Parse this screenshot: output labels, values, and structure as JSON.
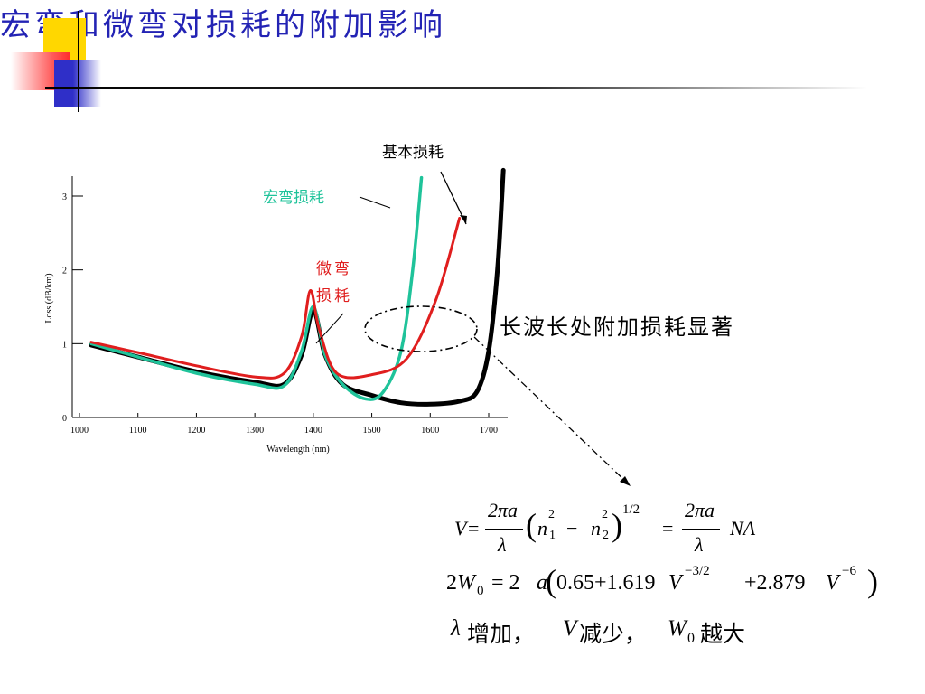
{
  "slide": {
    "title": "宏弯和微弯对损耗的附加影响",
    "accent_colors": {
      "title": "#2323b4",
      "yellow": "#ffd700",
      "red": "#ff3b3b",
      "blue": "#2f2fc8"
    }
  },
  "chart_data": {
    "type": "line",
    "xlabel": "Wavelength (nm)",
    "ylabel": "Loss (dB/km)",
    "xlim": [
      1000,
      1750
    ],
    "ylim": [
      0,
      3.4
    ],
    "x_ticks": [
      "1000",
      "1100",
      "1200",
      "1300",
      "1400",
      "1500",
      "1600",
      "1700"
    ],
    "y_ticks": [
      "0",
      "1",
      "2",
      "3"
    ],
    "series": [
      {
        "name": "基本损耗",
        "color": "#000000",
        "points": [
          [
            1020,
            0.98
          ],
          [
            1100,
            0.82
          ],
          [
            1200,
            0.62
          ],
          [
            1300,
            0.48
          ],
          [
            1350,
            0.45
          ],
          [
            1380,
            0.85
          ],
          [
            1400,
            1.45
          ],
          [
            1420,
            0.85
          ],
          [
            1450,
            0.45
          ],
          [
            1500,
            0.3
          ],
          [
            1550,
            0.2
          ],
          [
            1600,
            0.18
          ],
          [
            1650,
            0.22
          ],
          [
            1680,
            0.35
          ],
          [
            1700,
            0.9
          ],
          [
            1715,
            2.0
          ],
          [
            1725,
            3.35
          ]
        ]
      },
      {
        "name": "宏弯损耗",
        "color": "#1fc39a",
        "points": [
          [
            1020,
            1.0
          ],
          [
            1100,
            0.82
          ],
          [
            1200,
            0.6
          ],
          [
            1300,
            0.45
          ],
          [
            1350,
            0.43
          ],
          [
            1380,
            0.9
          ],
          [
            1400,
            1.5
          ],
          [
            1420,
            0.85
          ],
          [
            1450,
            0.45
          ],
          [
            1490,
            0.25
          ],
          [
            1520,
            0.35
          ],
          [
            1550,
            0.9
          ],
          [
            1570,
            2.0
          ],
          [
            1585,
            3.25
          ]
        ]
      },
      {
        "name": "微弯损耗",
        "color": "#e01e1e",
        "points": [
          [
            1020,
            1.02
          ],
          [
            1100,
            0.88
          ],
          [
            1200,
            0.7
          ],
          [
            1300,
            0.55
          ],
          [
            1350,
            0.6
          ],
          [
            1380,
            1.1
          ],
          [
            1395,
            1.72
          ],
          [
            1410,
            1.2
          ],
          [
            1440,
            0.6
          ],
          [
            1500,
            0.58
          ],
          [
            1560,
            0.8
          ],
          [
            1610,
            1.6
          ],
          [
            1650,
            2.7
          ]
        ]
      }
    ],
    "annotations": {
      "basic": "基本损耗",
      "macro": "宏弯损耗",
      "micro_line1": "微弯",
      "micro_line2": "损耗",
      "long_wave": "长波长处附加损耗显著"
    }
  },
  "formulas": {
    "line1": {
      "lhs": "V",
      "eq": "=",
      "num": "2πa",
      "den": "λ",
      "n1": "n",
      "n1sub": "1",
      "sq": "2",
      "minus": "−",
      "n2": "n",
      "n2sub": "2",
      "exp": "1/2",
      "eq2": "=",
      "num2": "2πa",
      "den2": "λ",
      "na": "NA"
    },
    "line2": {
      "lead": "2",
      "w": "W",
      "wsub": "0",
      "rest": "= 2",
      "a": "a",
      "paren_open": "(",
      "c1": "0.65+1.619",
      "v1": "V",
      "e1": "−3/2",
      "c2": "+2.879",
      "v2": "V",
      "e2": "−6",
      "paren_close": ")"
    },
    "line3": {
      "lambda": "λ",
      "t1": "增加，",
      "v": "V",
      "t2": "减少，",
      "w": "W",
      "wsub": "0",
      "t3": "越大"
    }
  }
}
